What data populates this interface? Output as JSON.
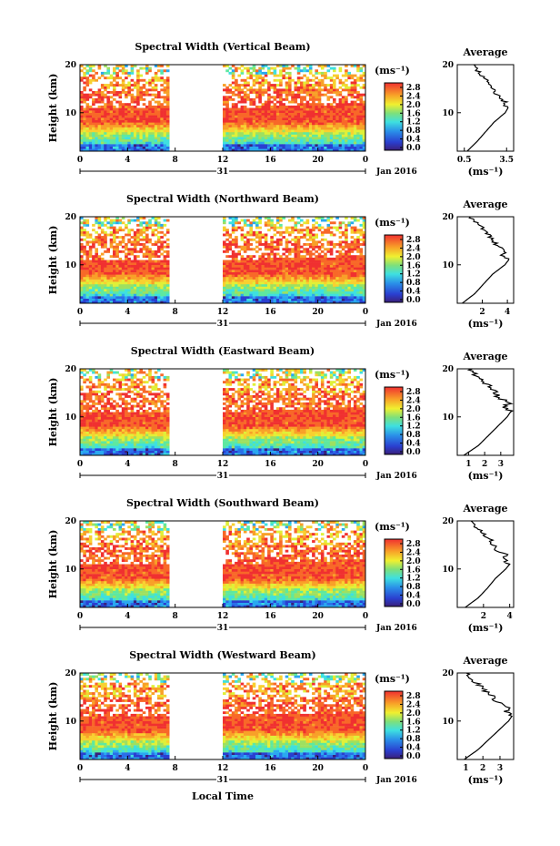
{
  "figure": {
    "xlabel": "Local Time",
    "date_label": "Jan 2016",
    "day_label": "31",
    "cbar_unit": "(ms⁻¹)",
    "avg_title": "Average",
    "avg_xlabel": "(ms⁻¹)",
    "ylabel": "Height (km)"
  },
  "chart_data": [
    {
      "type": "heatmap",
      "title": "Spectral Width (Vertical Beam)",
      "ylabel": "Height (km)",
      "xlabel": "Local Time",
      "x_ticks": [
        "0",
        "4",
        "8",
        "12",
        "16",
        "20",
        "0"
      ],
      "y_ticks": [
        "20",
        "10"
      ],
      "xlim": [
        0,
        24
      ],
      "ylim": [
        2,
        20
      ],
      "data_gap_hours": [
        7.5,
        11.8
      ],
      "colorbar": {
        "unit": "(ms⁻¹)",
        "ticks": [
          "2.8",
          "2.4",
          "2.0",
          "1.6",
          "1.2",
          "0.8",
          "0.4",
          "0.0"
        ]
      },
      "average_profile": {
        "title": "Average",
        "xlabel": "(ms⁻¹)",
        "x_ticks": [
          "0.5",
          "3.5"
        ],
        "xlim": [
          0,
          4
        ],
        "y_ticks": [
          "20",
          "10"
        ],
        "heights": [
          2,
          4,
          6,
          8,
          9,
          10,
          11,
          12,
          14,
          16,
          18,
          20
        ],
        "values": [
          0.7,
          1.4,
          2.0,
          2.6,
          3.0,
          3.4,
          3.6,
          3.4,
          2.7,
          2.2,
          1.7,
          1.2
        ]
      }
    },
    {
      "type": "heatmap",
      "title": "Spectral Width (Northward Beam)",
      "ylabel": "Height (km)",
      "xlabel": "Local Time",
      "x_ticks": [
        "0",
        "4",
        "8",
        "12",
        "16",
        "20",
        "0"
      ],
      "y_ticks": [
        "20",
        "10"
      ],
      "xlim": [
        0,
        24
      ],
      "ylim": [
        2,
        20
      ],
      "data_gap_hours": [
        7.5,
        11.8
      ],
      "colorbar": {
        "unit": "(ms⁻¹)",
        "ticks": [
          "2.8",
          "2.4",
          "2.0",
          "1.6",
          "1.2",
          "0.8",
          "0.4",
          "0.0"
        ]
      },
      "average_profile": {
        "title": "Average",
        "xlabel": "(ms⁻¹)",
        "x_ticks": [
          "2",
          "4"
        ],
        "xlim": [
          0,
          4.5
        ],
        "y_ticks": [
          "20",
          "10"
        ],
        "heights": [
          2,
          4,
          6,
          8,
          9,
          10,
          11,
          12,
          13,
          14,
          16,
          18,
          20
        ],
        "values": [
          0.4,
          1.4,
          2.1,
          2.8,
          3.3,
          3.8,
          4.1,
          3.6,
          3.9,
          3.2,
          2.6,
          1.8,
          1.1
        ]
      }
    },
    {
      "type": "heatmap",
      "title": "Spectral Width (Eastward Beam)",
      "ylabel": "Height (km)",
      "xlabel": "Local Time",
      "x_ticks": [
        "0",
        "4",
        "8",
        "12",
        "16",
        "20",
        "0"
      ],
      "y_ticks": [
        "20",
        "10"
      ],
      "xlim": [
        0,
        24
      ],
      "ylim": [
        2,
        20
      ],
      "data_gap_hours": [
        7.5,
        11.8
      ],
      "colorbar": {
        "unit": "(ms⁻¹)",
        "ticks": [
          "2.8",
          "2.4",
          "2.0",
          "1.6",
          "1.2",
          "0.8",
          "0.4",
          "0.0"
        ]
      },
      "average_profile": {
        "title": "Average",
        "xlabel": "(ms⁻¹)",
        "x_ticks": [
          "1",
          "2",
          "3"
        ],
        "xlim": [
          0.3,
          3.8
        ],
        "y_ticks": [
          "20",
          "10"
        ],
        "heights": [
          2,
          4,
          6,
          8,
          9,
          10,
          11,
          12,
          13,
          14,
          16,
          18,
          20
        ],
        "values": [
          0.7,
          1.6,
          2.2,
          2.8,
          3.1,
          3.4,
          3.6,
          3.3,
          3.5,
          2.9,
          2.4,
          1.6,
          1.1
        ]
      }
    },
    {
      "type": "heatmap",
      "title": "Spectral Width (Southward Beam)",
      "ylabel": "Height (km)",
      "xlabel": "Local Time",
      "x_ticks": [
        "0",
        "4",
        "8",
        "12",
        "16",
        "20",
        "0"
      ],
      "y_ticks": [
        "20",
        "10"
      ],
      "xlim": [
        0,
        24
      ],
      "ylim": [
        2,
        20
      ],
      "data_gap_hours": [
        7.5,
        11.8
      ],
      "colorbar": {
        "unit": "(ms⁻¹)",
        "ticks": [
          "2.8",
          "2.4",
          "2.0",
          "1.6",
          "1.2",
          "0.8",
          "0.4",
          "0.0"
        ]
      },
      "average_profile": {
        "title": "Average",
        "xlabel": "(ms⁻¹)",
        "x_ticks": [
          "2",
          "4"
        ],
        "xlim": [
          0,
          4.3
        ],
        "y_ticks": [
          "20",
          "10"
        ],
        "heights": [
          2,
          4,
          6,
          8,
          9,
          10,
          11,
          12,
          13,
          14,
          16,
          18,
          20
        ],
        "values": [
          0.6,
          1.6,
          2.3,
          2.9,
          3.3,
          3.7,
          4.0,
          3.5,
          3.7,
          3.0,
          2.5,
          1.7,
          1.0
        ]
      }
    },
    {
      "type": "heatmap",
      "title": "Spectral Width (Westward Beam)",
      "ylabel": "Height (km)",
      "xlabel": "Local Time",
      "x_ticks": [
        "0",
        "4",
        "8",
        "12",
        "16",
        "20",
        "0"
      ],
      "y_ticks": [
        "20",
        "10"
      ],
      "xlim": [
        0,
        24
      ],
      "ylim": [
        2,
        20
      ],
      "data_gap_hours": [
        7.5,
        11.8
      ],
      "colorbar": {
        "unit": "(ms⁻¹)",
        "ticks": [
          "2.8",
          "2.4",
          "2.0",
          "1.6",
          "1.2",
          "0.8",
          "0.4",
          "0.0"
        ]
      },
      "average_profile": {
        "title": "Average",
        "xlabel": "(ms⁻¹)",
        "x_ticks": [
          "1",
          "2",
          "3"
        ],
        "xlim": [
          0.5,
          3.8
        ],
        "y_ticks": [
          "20",
          "10"
        ],
        "heights": [
          2,
          4,
          6,
          8,
          9,
          10,
          11,
          12,
          13,
          14,
          16,
          18,
          20
        ],
        "values": [
          0.9,
          1.7,
          2.3,
          2.9,
          3.2,
          3.5,
          3.7,
          3.3,
          3.4,
          2.8,
          2.3,
          1.6,
          1.0
        ]
      }
    }
  ]
}
